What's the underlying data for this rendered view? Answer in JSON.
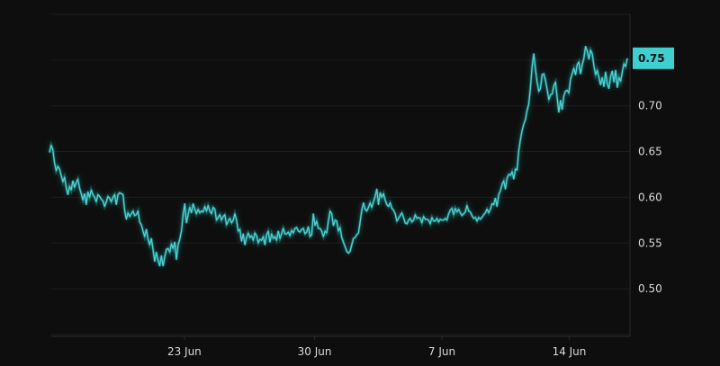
{
  "colors": {
    "background": "#0e0e0e",
    "grid": "#1c1c1c",
    "axis": "#2a2a2a",
    "line": "#4fd3d3",
    "glow": "#2ab7b7",
    "badge": "#3fcfcf"
  },
  "chart_data": {
    "type": "line",
    "title": "",
    "xlabel": "",
    "ylabel": "",
    "x_ticks": [
      "23 Jun",
      "30 Jun",
      "7 Jun",
      "14 Jun"
    ],
    "y_ticks": [
      "0.50",
      "0.55",
      "0.60",
      "0.65",
      "0.70",
      "0.75"
    ],
    "ylim": [
      0.448,
      0.8
    ],
    "grid": true,
    "last_value_label": "0.75",
    "series": [
      {
        "values": [
          0.649,
          0.657,
          0.652,
          0.638,
          0.629,
          0.634,
          0.631,
          0.624,
          0.617,
          0.622,
          0.611,
          0.603,
          0.612,
          0.608,
          0.618,
          0.611,
          0.616,
          0.62,
          0.61,
          0.604,
          0.597,
          0.604,
          0.592,
          0.606,
          0.6,
          0.608,
          0.603,
          0.6,
          0.595,
          0.603,
          0.601,
          0.598,
          0.596,
          0.59,
          0.595,
          0.601,
          0.599,
          0.595,
          0.6,
          0.603,
          0.592,
          0.603,
          0.605,
          0.604,
          0.603,
          0.586,
          0.576,
          0.583,
          0.579,
          0.582,
          0.585,
          0.58,
          0.581,
          0.585,
          0.573,
          0.57,
          0.563,
          0.557,
          0.565,
          0.554,
          0.548,
          0.555,
          0.543,
          0.53,
          0.54,
          0.531,
          0.525,
          0.536,
          0.525,
          0.535,
          0.543,
          0.544,
          0.54,
          0.549,
          0.544,
          0.551,
          0.532,
          0.548,
          0.554,
          0.563,
          0.581,
          0.593,
          0.572,
          0.581,
          0.589,
          0.583,
          0.593,
          0.587,
          0.582,
          0.587,
          0.583,
          0.585,
          0.584,
          0.59,
          0.585,
          0.591,
          0.585,
          0.582,
          0.589,
          0.587,
          0.575,
          0.578,
          0.581,
          0.575,
          0.579,
          0.581,
          0.57,
          0.574,
          0.577,
          0.572,
          0.575,
          0.582,
          0.575,
          0.563,
          0.565,
          0.552,
          0.56,
          0.548,
          0.556,
          0.561,
          0.556,
          0.558,
          0.553,
          0.561,
          0.558,
          0.55,
          0.554,
          0.553,
          0.557,
          0.548,
          0.559,
          0.563,
          0.551,
          0.56,
          0.555,
          0.557,
          0.553,
          0.563,
          0.555,
          0.56,
          0.566,
          0.56,
          0.56,
          0.562,
          0.558,
          0.564,
          0.561,
          0.566,
          0.567,
          0.563,
          0.562,
          0.565,
          0.566,
          0.56,
          0.562,
          0.568,
          0.557,
          0.559,
          0.582,
          0.569,
          0.574,
          0.566,
          0.566,
          0.563,
          0.557,
          0.563,
          0.561,
          0.574,
          0.585,
          0.582,
          0.569,
          0.575,
          0.574,
          0.563,
          0.567,
          0.556,
          0.551,
          0.546,
          0.541,
          0.539,
          0.541,
          0.548,
          0.555,
          0.556,
          0.559,
          0.561,
          0.573,
          0.586,
          0.594,
          0.587,
          0.585,
          0.589,
          0.594,
          0.589,
          0.595,
          0.601,
          0.609,
          0.592,
          0.605,
          0.6,
          0.604,
          0.597,
          0.592,
          0.59,
          0.594,
          0.588,
          0.586,
          0.582,
          0.574,
          0.577,
          0.58,
          0.583,
          0.578,
          0.572,
          0.571,
          0.575,
          0.577,
          0.573,
          0.575,
          0.581,
          0.577,
          0.578,
          0.577,
          0.572,
          0.579,
          0.576,
          0.576,
          0.575,
          0.571,
          0.578,
          0.574,
          0.574,
          0.577,
          0.573,
          0.576,
          0.575,
          0.575,
          0.577,
          0.575,
          0.582,
          0.586,
          0.588,
          0.581,
          0.588,
          0.584,
          0.587,
          0.583,
          0.58,
          0.582,
          0.584,
          0.591,
          0.585,
          0.584,
          0.58,
          0.577,
          0.578,
          0.574,
          0.578,
          0.576,
          0.578,
          0.581,
          0.583,
          0.587,
          0.583,
          0.587,
          0.593,
          0.592,
          0.599,
          0.59,
          0.603,
          0.607,
          0.614,
          0.618,
          0.609,
          0.621,
          0.625,
          0.624,
          0.628,
          0.62,
          0.631,
          0.63,
          0.651,
          0.663,
          0.673,
          0.68,
          0.685,
          0.695,
          0.702,
          0.72,
          0.743,
          0.757,
          0.74,
          0.726,
          0.716,
          0.719,
          0.734,
          0.735,
          0.728,
          0.718,
          0.707,
          0.712,
          0.713,
          0.722,
          0.726,
          0.709,
          0.693,
          0.706,
          0.696,
          0.711,
          0.716,
          0.717,
          0.714,
          0.729,
          0.735,
          0.741,
          0.734,
          0.745,
          0.748,
          0.735,
          0.745,
          0.752,
          0.765,
          0.76,
          0.751,
          0.761,
          0.757,
          0.744,
          0.734,
          0.739,
          0.731,
          0.723,
          0.731,
          0.721,
          0.737,
          0.724,
          0.719,
          0.732,
          0.738,
          0.726,
          0.739,
          0.72,
          0.731,
          0.727,
          0.737,
          0.746,
          0.743,
          0.752
        ]
      }
    ]
  }
}
